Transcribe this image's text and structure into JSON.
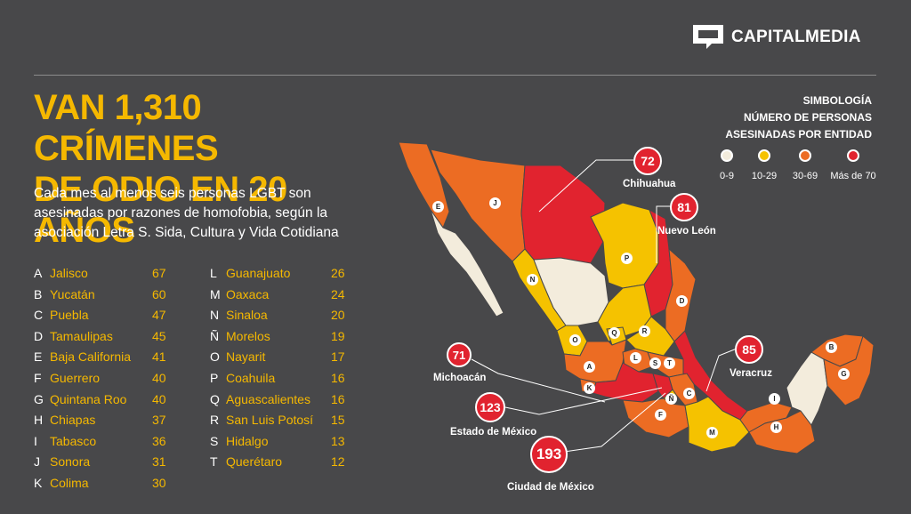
{
  "brand": {
    "name": "CAPITALMEDIA",
    "logo_icon": "speech-bubble-icon"
  },
  "title": {
    "line1": "VAN 1,310 CRÍMENES",
    "line2": "DE ODIO EN 20 AÑOS"
  },
  "subtitle": {
    "line1": "Cada mes al menos seis personas LGBT son",
    "line2": "asesinadas por razones de homofobia, según la",
    "line3": "asociación Letra S. Sida, Cultura y Vida Cotidiana"
  },
  "states_left": [
    {
      "letter": "A",
      "name": "Jalisco",
      "value": "67"
    },
    {
      "letter": "B",
      "name": "Yucatán",
      "value": "60"
    },
    {
      "letter": "C",
      "name": "Puebla",
      "value": "47"
    },
    {
      "letter": "D",
      "name": "Tamaulipas",
      "value": "45"
    },
    {
      "letter": "E",
      "name": "Baja California",
      "value": "41"
    },
    {
      "letter": "F",
      "name": "Guerrero",
      "value": "40"
    },
    {
      "letter": "G",
      "name": "Quintana Roo",
      "value": "40"
    },
    {
      "letter": "H",
      "name": "Chiapas",
      "value": "37"
    },
    {
      "letter": "I",
      "name": "Tabasco",
      "value": "36"
    },
    {
      "letter": "J",
      "name": "Sonora",
      "value": "31"
    },
    {
      "letter": "K",
      "name": "Colima",
      "value": "30"
    }
  ],
  "states_right": [
    {
      "letter": "L",
      "name": "Guanajuato",
      "value": "26"
    },
    {
      "letter": "M",
      "name": "Oaxaca",
      "value": "24"
    },
    {
      "letter": "N",
      "name": "Sinaloa",
      "value": "20"
    },
    {
      "letter": "Ñ",
      "name": "Morelos",
      "value": "19"
    },
    {
      "letter": "O",
      "name": "Nayarit",
      "value": "17"
    },
    {
      "letter": "P",
      "name": "Coahuila",
      "value": "16"
    },
    {
      "letter": "Q",
      "name": "Aguascalientes",
      "value": "16"
    },
    {
      "letter": "R",
      "name": "San Luis Potosí",
      "value": "15"
    },
    {
      "letter": "S",
      "name": "Hidalgo",
      "value": "13"
    },
    {
      "letter": "T",
      "name": "Querétaro",
      "value": "12"
    }
  ],
  "legend": {
    "line1": "SIMBOLOGÍA",
    "line2": "NÚMERO DE PERSONAS",
    "line3": "ASESINADAS POR ENTIDAD",
    "items": [
      {
        "label": "0-9",
        "color": "#f3ecdc"
      },
      {
        "label": "10-29",
        "color": "#f5c200"
      },
      {
        "label": "30-69",
        "color": "#ec6c23"
      },
      {
        "label": "Más de 70",
        "color": "#e1232f"
      }
    ]
  },
  "callouts": [
    {
      "value": "72",
      "label": "Chihuahua"
    },
    {
      "value": "81",
      "label": "Nuevo León"
    },
    {
      "value": "85",
      "label": "Veracruz"
    },
    {
      "value": "71",
      "label": "Michoacán"
    },
    {
      "value": "123",
      "label": "Estado de México"
    },
    {
      "value": "193",
      "label": "Ciudad de México"
    }
  ],
  "map_badges": [
    "E",
    "J",
    "N",
    "P",
    "D",
    "O",
    "Q",
    "R",
    "A",
    "L",
    "S",
    "T",
    "K",
    "C",
    "Ñ",
    "F",
    "I",
    "M",
    "H",
    "B",
    "G"
  ]
}
